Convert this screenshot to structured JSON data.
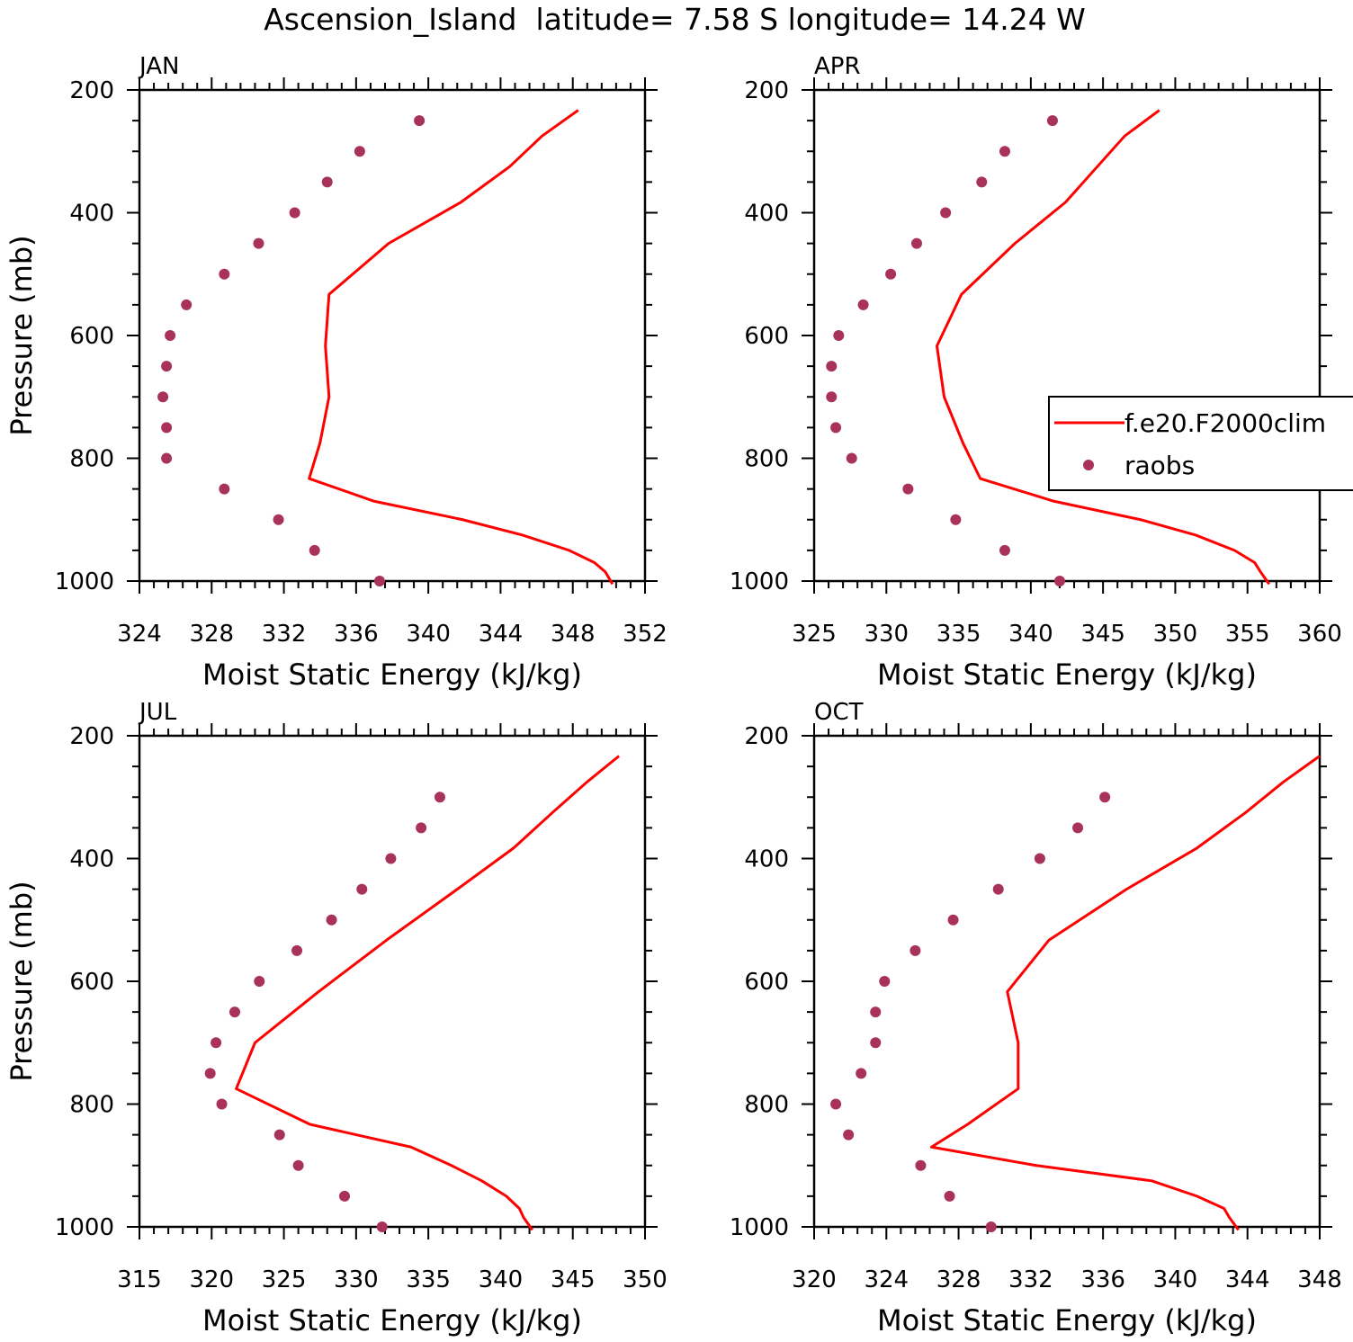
{
  "title": "Ascension_Island  latitude= 7.58 S longitude= 14.24 W",
  "colors": {
    "model": "#ff0000",
    "obs": "#a8325a",
    "axis": "#000000"
  },
  "legend": {
    "model_label": "f.e20.F2000clim",
    "obs_label": "raobs",
    "location": "right-middle of APR panel, clipped at figure edge"
  },
  "chart_data": [
    {
      "type": "line",
      "panel": "JAN",
      "title": "JAN",
      "xlabel": "Moist Static Energy (kJ/kg)",
      "ylabel": "Pressure (mb)",
      "xlim": [
        324,
        352
      ],
      "ylim": [
        200,
        1000
      ],
      "y_reversed": true,
      "xticks": [
        324,
        328,
        332,
        336,
        340,
        344,
        348,
        352
      ],
      "yticks": [
        200,
        400,
        600,
        800,
        1000
      ],
      "series": [
        {
          "name": "f.e20.F2000clim",
          "kind": "line",
          "p": [
            233,
            275,
            325,
            383,
            450,
            533,
            617,
            700,
            775,
            833,
            870,
            900,
            925,
            950,
            970,
            985,
            1005
          ],
          "mse": [
            348.3,
            346.3,
            344.5,
            341.8,
            337.8,
            334.5,
            334.3,
            334.5,
            334.0,
            333.4,
            337.0,
            341.9,
            345.2,
            347.8,
            349.2,
            349.8,
            350.2
          ]
        },
        {
          "name": "raobs",
          "kind": "scatter",
          "p": [
            250,
            300,
            350,
            400,
            450,
            500,
            550,
            600,
            650,
            700,
            750,
            800,
            850,
            900,
            950,
            1000
          ],
          "mse": [
            339.5,
            336.2,
            334.4,
            332.6,
            330.6,
            328.7,
            326.6,
            325.7,
            325.5,
            325.3,
            325.5,
            325.5,
            328.7,
            331.7,
            333.7,
            337.3
          ]
        }
      ]
    },
    {
      "type": "line",
      "panel": "APR",
      "title": "APR",
      "xlabel": "Moist Static Energy (kJ/kg)",
      "ylabel": "",
      "xlim": [
        325,
        360
      ],
      "ylim": [
        200,
        1000
      ],
      "y_reversed": true,
      "xticks": [
        325,
        330,
        335,
        340,
        345,
        350,
        355,
        360
      ],
      "yticks": [
        200,
        400,
        600,
        800,
        1000
      ],
      "series": [
        {
          "name": "f.e20.F2000clim",
          "kind": "line",
          "p": [
            233,
            275,
            325,
            383,
            450,
            533,
            617,
            700,
            775,
            833,
            870,
            900,
            925,
            950,
            970,
            985,
            1005
          ],
          "mse": [
            348.9,
            346.5,
            344.6,
            342.4,
            338.9,
            335.2,
            333.5,
            334.0,
            335.3,
            336.5,
            341.6,
            347.6,
            351.4,
            354.1,
            355.5,
            355.9,
            356.5
          ]
        },
        {
          "name": "raobs",
          "kind": "scatter",
          "p": [
            250,
            300,
            350,
            400,
            450,
            500,
            550,
            600,
            650,
            700,
            750,
            800,
            850,
            900,
            950,
            1000
          ],
          "mse": [
            341.5,
            338.2,
            336.6,
            334.1,
            332.1,
            330.3,
            328.4,
            326.7,
            326.2,
            326.2,
            326.5,
            327.6,
            331.5,
            334.8,
            338.2,
            342.0
          ]
        }
      ]
    },
    {
      "type": "line",
      "panel": "JUL",
      "title": "JUL",
      "xlabel": "Moist Static Energy (kJ/kg)",
      "ylabel": "Pressure (mb)",
      "xlim": [
        315,
        350
      ],
      "ylim": [
        200,
        1000
      ],
      "y_reversed": true,
      "xticks": [
        315,
        320,
        325,
        330,
        335,
        340,
        345,
        350
      ],
      "yticks": [
        200,
        400,
        600,
        800,
        1000
      ],
      "series": [
        {
          "name": "f.e20.F2000clim",
          "kind": "line",
          "p": [
            233,
            275,
            325,
            383,
            450,
            533,
            617,
            700,
            775,
            833,
            870,
            900,
            925,
            950,
            970,
            985,
            1005
          ],
          "mse": [
            348.2,
            346.0,
            343.6,
            340.9,
            337.0,
            332.1,
            327.4,
            323.0,
            321.7,
            326.8,
            333.8,
            336.6,
            338.7,
            340.4,
            341.3,
            341.6,
            342.2
          ]
        },
        {
          "name": "raobs",
          "kind": "scatter",
          "p": [
            300,
            350,
            400,
            450,
            500,
            550,
            600,
            650,
            700,
            750,
            800,
            850,
            900,
            950,
            1000
          ],
          "mse": [
            335.8,
            334.5,
            332.4,
            330.4,
            328.3,
            325.9,
            323.3,
            321.6,
            320.3,
            319.9,
            320.7,
            324.7,
            326.0,
            329.2,
            331.8
          ]
        }
      ]
    },
    {
      "type": "line",
      "panel": "OCT",
      "title": "OCT",
      "xlabel": "Moist Static Energy (kJ/kg)",
      "ylabel": "",
      "xlim": [
        320,
        348
      ],
      "ylim": [
        200,
        1000
      ],
      "y_reversed": true,
      "xticks": [
        320,
        324,
        328,
        332,
        336,
        340,
        344,
        348
      ],
      "yticks": [
        200,
        400,
        600,
        800,
        1000
      ],
      "series": [
        {
          "name": "f.e20.F2000clim",
          "kind": "line",
          "p": [
            233,
            275,
            325,
            383,
            450,
            533,
            617,
            700,
            775,
            833,
            870,
            900,
            925,
            950,
            970,
            985,
            1005
          ],
          "mse": [
            348.0,
            346.0,
            343.9,
            341.2,
            337.3,
            333.0,
            330.7,
            331.3,
            331.3,
            328.5,
            326.5,
            332.3,
            338.7,
            341.2,
            342.7,
            343.0,
            343.5
          ]
        },
        {
          "name": "raobs",
          "kind": "scatter",
          "p": [
            300,
            350,
            400,
            450,
            500,
            550,
            600,
            650,
            700,
            750,
            800,
            850,
            900,
            950,
            1000
          ],
          "mse": [
            336.1,
            334.6,
            332.5,
            330.2,
            327.7,
            325.6,
            323.9,
            323.4,
            323.4,
            322.6,
            321.2,
            321.9,
            325.9,
            327.5,
            329.8
          ]
        }
      ]
    }
  ]
}
